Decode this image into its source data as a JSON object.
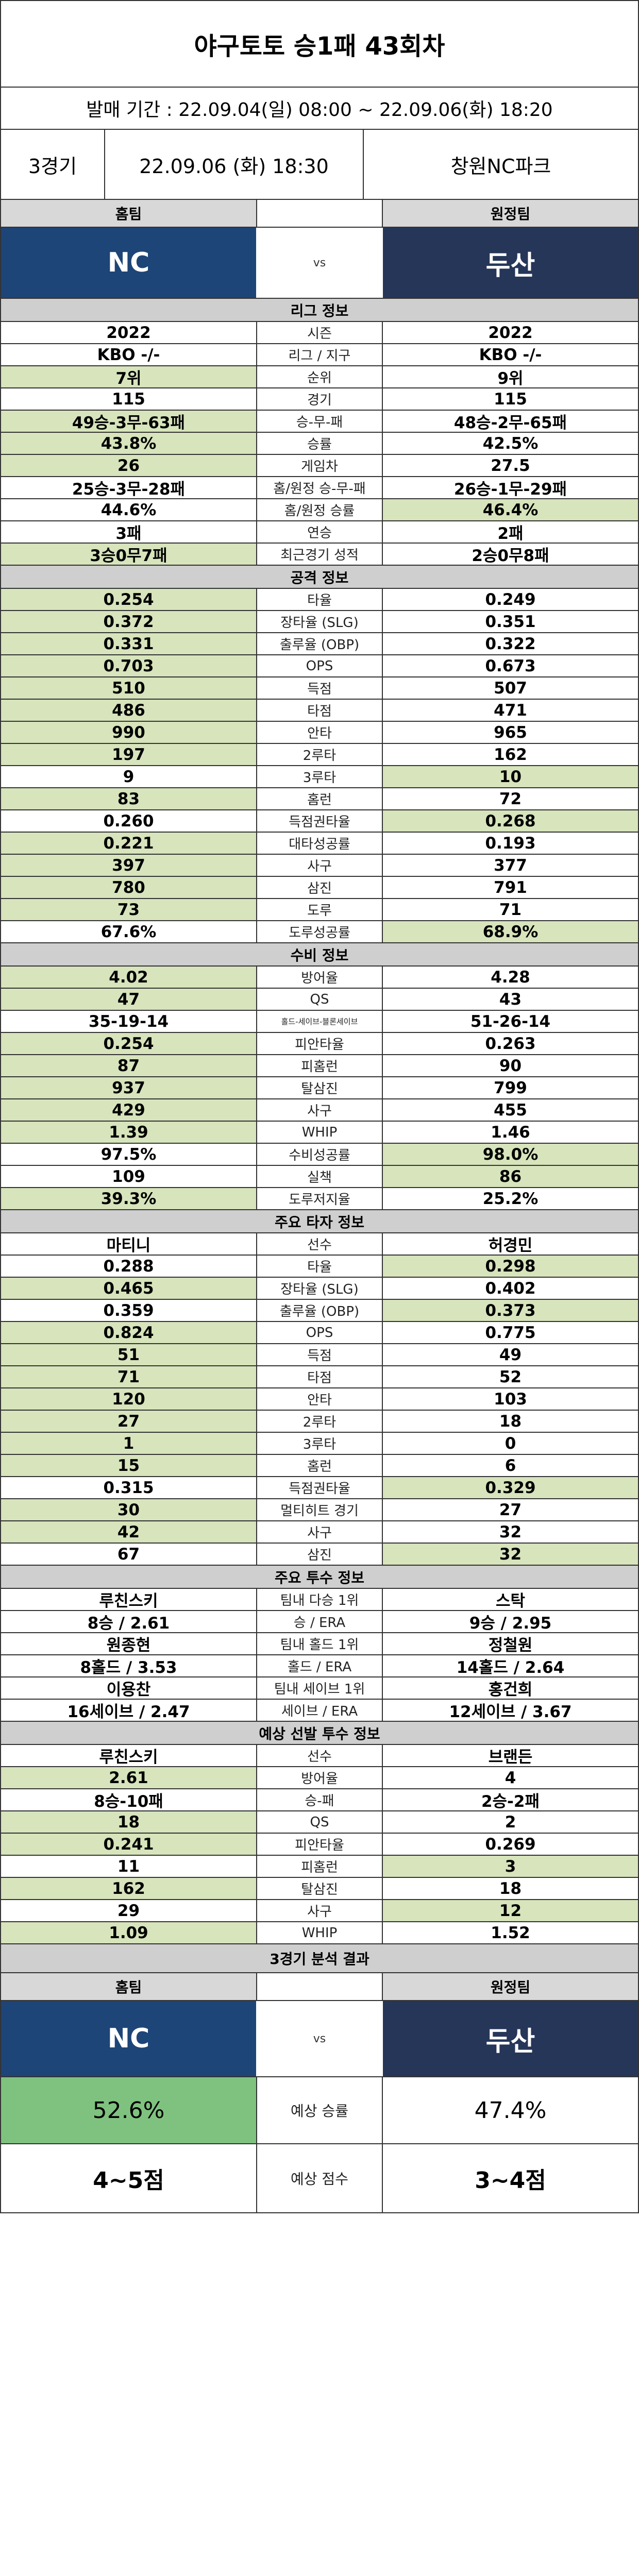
{
  "title": "야구토토 승1패 43회차",
  "sale_period": "발매 기간 : 22.09.04(일) 08:00 ~ 22.09.06(화) 18:20",
  "game": {
    "number": "3경기",
    "datetime": "22.09.06 (화) 18:30",
    "stadium": "창원NC파크"
  },
  "teams": {
    "home_label": "홈팀",
    "away_label": "원정팀",
    "vs": "vs",
    "home": "NC",
    "away": "두산",
    "home_color": "#1d4577",
    "away_color": "#253659"
  },
  "sections": [
    {
      "title": "리그 정보",
      "rows": [
        {
          "label": "시즌",
          "home": "2022",
          "away": "2022",
          "hl": "none"
        },
        {
          "label": "리그 / 지구",
          "home": "KBO -/-",
          "away": "KBO -/-",
          "hl": "none"
        },
        {
          "label": "순위",
          "home": "7위",
          "away": "9위",
          "hl": "home"
        },
        {
          "label": "경기",
          "home": "115",
          "away": "115",
          "hl": "none"
        },
        {
          "label": "승-무-패",
          "home": "49승-3무-63패",
          "away": "48승-2무-65패",
          "hl": "home"
        },
        {
          "label": "승률",
          "home": "43.8%",
          "away": "42.5%",
          "hl": "home"
        },
        {
          "label": "게임차",
          "home": "26",
          "away": "27.5",
          "hl": "home"
        },
        {
          "label": "홈/원정 승-무-패",
          "home": "25승-3무-28패",
          "away": "26승-1무-29패",
          "hl": "none"
        },
        {
          "label": "홈/원정 승률",
          "home": "44.6%",
          "away": "46.4%",
          "hl": "away"
        },
        {
          "label": "연승",
          "home": "3패",
          "away": "2패",
          "hl": "none"
        },
        {
          "label": "최근경기 성적",
          "home": "3승0무7패",
          "away": "2승0무8패",
          "hl": "home"
        }
      ]
    },
    {
      "title": "공격 정보",
      "rows": [
        {
          "label": "타율",
          "home": "0.254",
          "away": "0.249",
          "hl": "home"
        },
        {
          "label": "장타율 (SLG)",
          "home": "0.372",
          "away": "0.351",
          "hl": "home"
        },
        {
          "label": "출루율 (OBP)",
          "home": "0.331",
          "away": "0.322",
          "hl": "home"
        },
        {
          "label": "OPS",
          "home": "0.703",
          "away": "0.673",
          "hl": "home"
        },
        {
          "label": "득점",
          "home": "510",
          "away": "507",
          "hl": "home"
        },
        {
          "label": "타점",
          "home": "486",
          "away": "471",
          "hl": "home"
        },
        {
          "label": "안타",
          "home": "990",
          "away": "965",
          "hl": "home"
        },
        {
          "label": "2루타",
          "home": "197",
          "away": "162",
          "hl": "home"
        },
        {
          "label": "3루타",
          "home": "9",
          "away": "10",
          "hl": "away"
        },
        {
          "label": "홈런",
          "home": "83",
          "away": "72",
          "hl": "home"
        },
        {
          "label": "득점권타율",
          "home": "0.260",
          "away": "0.268",
          "hl": "away"
        },
        {
          "label": "대타성공률",
          "home": "0.221",
          "away": "0.193",
          "hl": "home"
        },
        {
          "label": "사구",
          "home": "397",
          "away": "377",
          "hl": "home"
        },
        {
          "label": "삼진",
          "home": "780",
          "away": "791",
          "hl": "home"
        },
        {
          "label": "도루",
          "home": "73",
          "away": "71",
          "hl": "home"
        },
        {
          "label": "도루성공률",
          "home": "67.6%",
          "away": "68.9%",
          "hl": "away"
        }
      ]
    },
    {
      "title": "수비 정보",
      "rows": [
        {
          "label": "방어율",
          "home": "4.02",
          "away": "4.28",
          "hl": "home"
        },
        {
          "label": "QS",
          "home": "47",
          "away": "43",
          "hl": "home"
        },
        {
          "label": "홀드-세이브-블론세이브",
          "home": "35-19-14",
          "away": "51-26-14",
          "hl": "none",
          "small": true
        },
        {
          "label": "피안타율",
          "home": "0.254",
          "away": "0.263",
          "hl": "home"
        },
        {
          "label": "피홈런",
          "home": "87",
          "away": "90",
          "hl": "home"
        },
        {
          "label": "탈삼진",
          "home": "937",
          "away": "799",
          "hl": "home"
        },
        {
          "label": "사구",
          "home": "429",
          "away": "455",
          "hl": "home"
        },
        {
          "label": "WHIP",
          "home": "1.39",
          "away": "1.46",
          "hl": "home"
        },
        {
          "label": "수비성공률",
          "home": "97.5%",
          "away": "98.0%",
          "hl": "away"
        },
        {
          "label": "실책",
          "home": "109",
          "away": "86",
          "hl": "away"
        },
        {
          "label": "도루저지율",
          "home": "39.3%",
          "away": "25.2%",
          "hl": "home"
        }
      ]
    },
    {
      "title": "주요 타자 정보",
      "rows": [
        {
          "label": "선수",
          "home": "마티니",
          "away": "허경민",
          "hl": "none"
        },
        {
          "label": "타율",
          "home": "0.288",
          "away": "0.298",
          "hl": "away"
        },
        {
          "label": "장타율 (SLG)",
          "home": "0.465",
          "away": "0.402",
          "hl": "home"
        },
        {
          "label": "출루율 (OBP)",
          "home": "0.359",
          "away": "0.373",
          "hl": "away"
        },
        {
          "label": "OPS",
          "home": "0.824",
          "away": "0.775",
          "hl": "home"
        },
        {
          "label": "득점",
          "home": "51",
          "away": "49",
          "hl": "home"
        },
        {
          "label": "타점",
          "home": "71",
          "away": "52",
          "hl": "home"
        },
        {
          "label": "안타",
          "home": "120",
          "away": "103",
          "hl": "home"
        },
        {
          "label": "2루타",
          "home": "27",
          "away": "18",
          "hl": "home"
        },
        {
          "label": "3루타",
          "home": "1",
          "away": "0",
          "hl": "home"
        },
        {
          "label": "홈런",
          "home": "15",
          "away": "6",
          "hl": "home"
        },
        {
          "label": "득점권타율",
          "home": "0.315",
          "away": "0.329",
          "hl": "away"
        },
        {
          "label": "멀티히트 경기",
          "home": "30",
          "away": "27",
          "hl": "home"
        },
        {
          "label": "사구",
          "home": "42",
          "away": "32",
          "hl": "home"
        },
        {
          "label": "삼진",
          "home": "67",
          "away": "32",
          "hl": "away"
        }
      ]
    },
    {
      "title": "주요 투수 정보",
      "rows": [
        {
          "label": "팀내 다승 1위",
          "home": "루친스키",
          "away": "스탁",
          "hl": "none"
        },
        {
          "label": "승 / ERA",
          "home": "8승 / 2.61",
          "away": "9승 / 2.95",
          "hl": "none"
        },
        {
          "label": "팀내 홀드 1위",
          "home": "원종현",
          "away": "정철원",
          "hl": "none"
        },
        {
          "label": "홀드 / ERA",
          "home": "8홀드 / 3.53",
          "away": "14홀드 / 2.64",
          "hl": "none"
        },
        {
          "label": "팀내 세이브 1위",
          "home": "이용찬",
          "away": "홍건희",
          "hl": "none"
        },
        {
          "label": "세이브 / ERA",
          "home": "16세이브 / 2.47",
          "away": "12세이브 / 3.67",
          "hl": "none"
        }
      ]
    },
    {
      "title": "예상 선발 투수 정보",
      "rows": [
        {
          "label": "선수",
          "home": "루친스키",
          "away": "브랜든",
          "hl": "none"
        },
        {
          "label": "방어율",
          "home": "2.61",
          "away": "4",
          "hl": "home"
        },
        {
          "label": "승-패",
          "home": "8승-10패",
          "away": "2승-2패",
          "hl": "none"
        },
        {
          "label": "QS",
          "home": "18",
          "away": "2",
          "hl": "home"
        },
        {
          "label": "피안타율",
          "home": "0.241",
          "away": "0.269",
          "hl": "home"
        },
        {
          "label": "피홈런",
          "home": "11",
          "away": "3",
          "hl": "away"
        },
        {
          "label": "탈삼진",
          "home": "162",
          "away": "18",
          "hl": "home"
        },
        {
          "label": "사구",
          "home": "29",
          "away": "12",
          "hl": "away"
        },
        {
          "label": "WHIP",
          "home": "1.09",
          "away": "1.52",
          "hl": "home"
        }
      ]
    }
  ],
  "result": {
    "title": "3경기 분석 결과",
    "home_label": "홈팀",
    "away_label": "원정팀",
    "vs": "vs",
    "home": "NC",
    "away": "두산",
    "win_prob_label": "예상 승률",
    "home_win_prob": "52.6%",
    "away_win_prob": "47.4%",
    "score_label": "예상 점수",
    "home_score": "4~5점",
    "away_score": "3~4점"
  },
  "colors": {
    "highlight": "#d7e4bc",
    "win_highlight": "#7fc27f",
    "section_bg": "#cfcfcf"
  }
}
